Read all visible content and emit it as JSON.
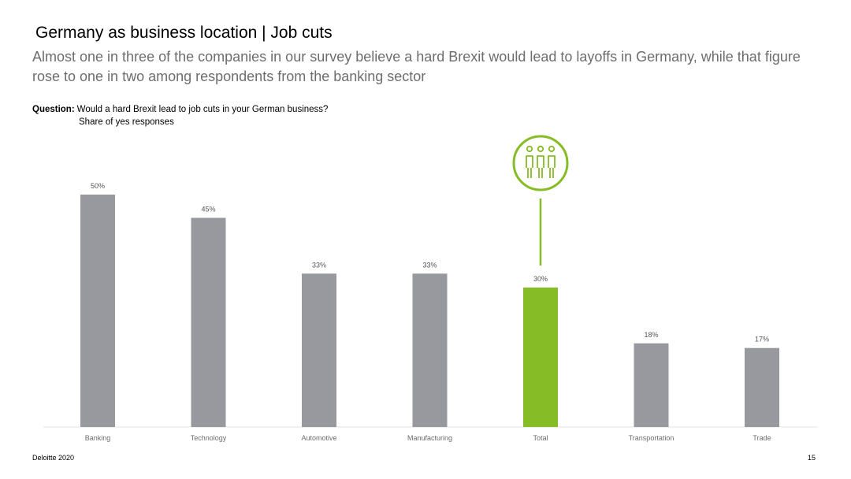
{
  "header": {
    "title": "Germany as business location | Job cuts",
    "subtitle": "Almost one in three of the companies in our survey believe a hard Brexit would lead to layoffs in Germany, while that figure rose to one in two among respondents from the banking sector"
  },
  "question": {
    "label": "Question:",
    "text": "Would a hard Brexit lead to job cuts in your German business?",
    "subtext": "Share of yes responses"
  },
  "chart_data": {
    "type": "bar",
    "categories": [
      "Banking",
      "Technology",
      "Automotive",
      "Manufacturing",
      "Total",
      "Transportation",
      "Trade"
    ],
    "values": [
      50,
      45,
      33,
      33,
      30,
      18,
      17
    ],
    "data_labels": [
      "50%",
      "45%",
      "33%",
      "33%",
      "30%",
      "18%",
      "17%"
    ],
    "highlight_category": "Total",
    "highlight_icon": "people-group-icon",
    "ylim": [
      0,
      50
    ],
    "grid": false,
    "colors": {
      "bar": "#97999f",
      "highlight": "#86bc25"
    }
  },
  "footer": {
    "source": "Deloitte 2020",
    "page": "15"
  }
}
